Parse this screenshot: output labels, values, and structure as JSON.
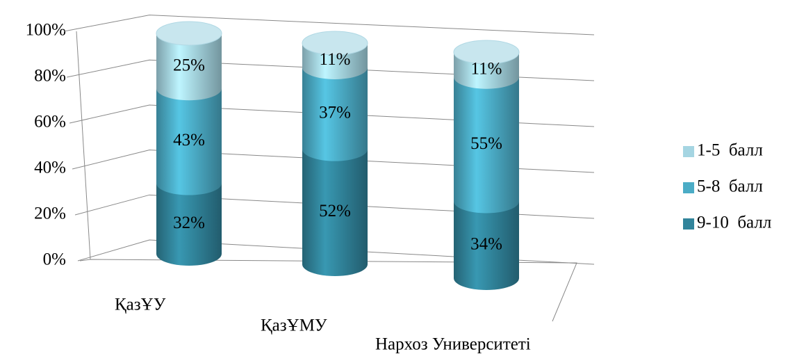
{
  "chart_data": {
    "type": "bar3d_stacked",
    "categories": [
      "ҚазҰУ",
      "ҚазҰМУ",
      "Нархоз Университеті"
    ],
    "series": [
      {
        "name": "9-10  балл",
        "color": "#31849b",
        "values": [
          32,
          52,
          34
        ],
        "value_labels": [
          "32%",
          "52%",
          "34%"
        ]
      },
      {
        "name": "5-8  балл",
        "color": "#4bacc6",
        "values": [
          43,
          37,
          55
        ],
        "value_labels": [
          "43%",
          "37%",
          "55%"
        ]
      },
      {
        "name": "1-5  балл",
        "color": "#a5d5e2",
        "values": [
          25,
          11,
          11
        ],
        "value_labels": [
          "25%",
          "11%",
          "11%"
        ]
      }
    ],
    "ylim": [
      0,
      100
    ],
    "yticks": [
      {
        "value": 0,
        "label": "0%"
      },
      {
        "value": 20,
        "label": "20%"
      },
      {
        "value": 40,
        "label": "40%"
      },
      {
        "value": 60,
        "label": "60%"
      },
      {
        "value": 80,
        "label": "80%"
      },
      {
        "value": 100,
        "label": "100%"
      }
    ],
    "grid": true,
    "legend": "right"
  }
}
